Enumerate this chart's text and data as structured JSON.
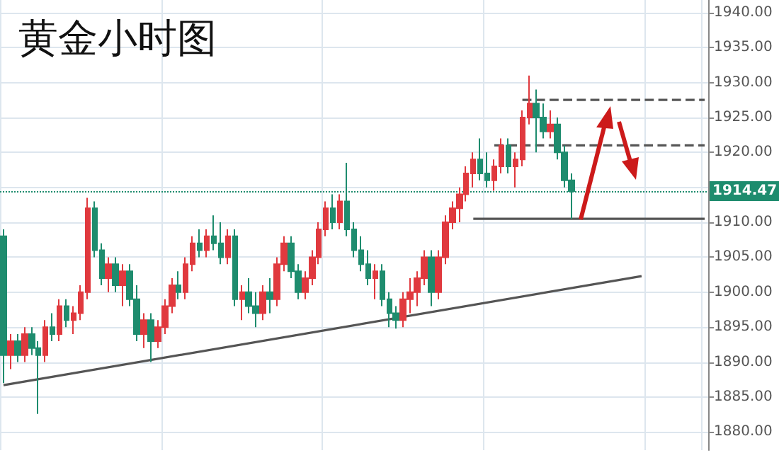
{
  "chart_data": {
    "type": "candlestick",
    "title": "黄金小时图",
    "categories": [
      null,
      null,
      null,
      null,
      null,
      null,
      null,
      null,
      null,
      null,
      null,
      null,
      null,
      null,
      null,
      null,
      null,
      null,
      null,
      null,
      null,
      null,
      null,
      null,
      null,
      null,
      null,
      null,
      null,
      null,
      null,
      null,
      null,
      null,
      null,
      null,
      null,
      null,
      null,
      null,
      null,
      null,
      null,
      null,
      null,
      null,
      null,
      null,
      null,
      null,
      null,
      null,
      null,
      null,
      null,
      null,
      null,
      null,
      null,
      null,
      null,
      null,
      null,
      null,
      null,
      null,
      null,
      null,
      null,
      null,
      null,
      null,
      null,
      null,
      null,
      null,
      null,
      null,
      null,
      null,
      null,
      null,
      null,
      null,
      null,
      null,
      null,
      null,
      null,
      null,
      null,
      null,
      null,
      null,
      null,
      null,
      null,
      null,
      null,
      null,
      null
    ],
    "ohlc": [
      [
        1908,
        1909,
        1887,
        1891
      ],
      [
        1891,
        1894,
        1889,
        1893
      ],
      [
        1893,
        1894,
        1890,
        1891
      ],
      [
        1891,
        1895,
        1890,
        1894
      ],
      [
        1894,
        1895,
        1891,
        1892
      ],
      [
        1892,
        1893,
        1882.6,
        1891
      ],
      [
        1891,
        1896,
        1890,
        1895
      ],
      [
        1895,
        1897,
        1893,
        1894
      ],
      [
        1894,
        1899,
        1893,
        1898
      ],
      [
        1898,
        1899,
        1895,
        1896
      ],
      [
        1896,
        1898,
        1894,
        1897
      ],
      [
        1897,
        1901,
        1896,
        1900
      ],
      [
        1900,
        1913.5,
        1899,
        1912
      ],
      [
        1912,
        1913,
        1905,
        1906
      ],
      [
        1906,
        1907,
        1901,
        1902
      ],
      [
        1902,
        1905,
        1900,
        1904
      ],
      [
        1904,
        1905,
        1900,
        1901
      ],
      [
        1901,
        1904,
        1898,
        1903
      ],
      [
        1903,
        1904,
        1898,
        1899
      ],
      [
        1899,
        1901,
        1893,
        1894
      ],
      [
        1894,
        1897,
        1892,
        1896
      ],
      [
        1896,
        1897,
        1890,
        1893
      ],
      [
        1893,
        1896,
        1892,
        1895
      ],
      [
        1895,
        1899,
        1894,
        1898
      ],
      [
        1898,
        1902,
        1897,
        1901
      ],
      [
        1901,
        1903,
        1899,
        1900
      ],
      [
        1900,
        1905,
        1899,
        1904
      ],
      [
        1904,
        1908,
        1903,
        1907
      ],
      [
        1907,
        1909,
        1905,
        1906
      ],
      [
        1906,
        1909,
        1905,
        1908
      ],
      [
        1908,
        1911,
        1906,
        1907
      ],
      [
        1907,
        1910,
        1904,
        1905
      ],
      [
        1905,
        1909,
        1904,
        1908
      ],
      [
        1908,
        1909,
        1898,
        1899
      ],
      [
        1899,
        1901,
        1896,
        1900
      ],
      [
        1900,
        1902,
        1897,
        1898
      ],
      [
        1898,
        1900,
        1895,
        1897
      ],
      [
        1897,
        1901,
        1896,
        1900
      ],
      [
        1900,
        1902,
        1897,
        1899
      ],
      [
        1899,
        1905,
        1898,
        1904
      ],
      [
        1904,
        1908,
        1903,
        1907
      ],
      [
        1907,
        1908,
        1902,
        1903
      ],
      [
        1903,
        1904,
        1899,
        1900
      ],
      [
        1900,
        1903,
        1899,
        1902
      ],
      [
        1902,
        1906,
        1901,
        1905
      ],
      [
        1905,
        1910,
        1904,
        1909
      ],
      [
        1909,
        1913,
        1908,
        1912
      ],
      [
        1912,
        1914,
        1909,
        1910
      ],
      [
        1910,
        1914,
        1909,
        1913
      ],
      [
        1913,
        1918.5,
        1908,
        1909
      ],
      [
        1909,
        1910,
        1905,
        1906
      ],
      [
        1906,
        1908,
        1903,
        1904
      ],
      [
        1904,
        1906,
        1901,
        1902
      ],
      [
        1902,
        1904,
        1899,
        1903
      ],
      [
        1903,
        1904,
        1898,
        1899
      ],
      [
        1899,
        1900,
        1895,
        1897
      ],
      [
        1897,
        1898,
        1894.8,
        1896
      ],
      [
        1896,
        1900,
        1895,
        1899
      ],
      [
        1899,
        1902,
        1897,
        1900
      ],
      [
        1900,
        1903,
        1898,
        1902
      ],
      [
        1902,
        1906,
        1901,
        1905
      ],
      [
        1905,
        1906,
        1898,
        1900
      ],
      [
        1900,
        1906,
        1899,
        1905
      ],
      [
        1905,
        1911,
        1904,
        1910
      ],
      [
        1910,
        1913,
        1909,
        1912
      ],
      [
        1912,
        1915,
        1910,
        1914
      ],
      [
        1914,
        1918,
        1913,
        1917
      ],
      [
        1917,
        1920,
        1915,
        1919
      ],
      [
        1919,
        1922,
        1916,
        1917
      ],
      [
        1917,
        1920,
        1915,
        1916
      ],
      [
        1916,
        1919,
        1914.5,
        1918
      ],
      [
        1918,
        1922,
        1917,
        1921
      ],
      [
        1921,
        1922,
        1917,
        1918
      ],
      [
        1918,
        1920,
        1915,
        1919
      ],
      [
        1919,
        1926,
        1918,
        1925
      ],
      [
        1925,
        1931,
        1924,
        1927
      ],
      [
        1927,
        1929,
        1920,
        1925
      ],
      [
        1925,
        1927,
        1922,
        1923
      ],
      [
        1923,
        1926,
        1922,
        1924
      ],
      [
        1924,
        1925,
        1919,
        1920
      ],
      [
        1920,
        1921,
        1915,
        1916
      ],
      [
        1916,
        1917,
        1910.5,
        1914.47
      ],
      null,
      null,
      null,
      null,
      null,
      null,
      null,
      null,
      null,
      null,
      null,
      null,
      null,
      null,
      null,
      null,
      null,
      null,
      null
    ],
    "colors": [
      "#1e8c6e",
      "#e0393e",
      "#1e8c6e",
      "#e0393e",
      "#1e8c6e",
      "#1e8c6e",
      "#e0393e",
      "#1e8c6e",
      "#e0393e",
      "#1e8c6e",
      "#e0393e",
      "#e0393e",
      "#e0393e",
      "#1e8c6e",
      "#1e8c6e",
      "#e0393e",
      "#1e8c6e",
      "#e0393e",
      "#1e8c6e",
      "#1e8c6e",
      "#e0393e",
      "#1e8c6e",
      "#e0393e",
      "#e0393e",
      "#e0393e",
      "#1e8c6e",
      "#e0393e",
      "#e0393e",
      "#1e8c6e",
      "#e0393e",
      "#1e8c6e",
      "#1e8c6e",
      "#e0393e",
      "#1e8c6e",
      "#e0393e",
      "#1e8c6e",
      "#1e8c6e",
      "#e0393e",
      "#1e8c6e",
      "#e0393e",
      "#e0393e",
      "#1e8c6e",
      "#1e8c6e",
      "#e0393e",
      "#e0393e",
      "#e0393e",
      "#e0393e",
      "#1e8c6e",
      "#e0393e",
      "#1e8c6e",
      "#1e8c6e",
      "#1e8c6e",
      "#1e8c6e",
      "#e0393e",
      "#1e8c6e",
      "#1e8c6e",
      "#1e8c6e",
      "#e0393e",
      "#e0393e",
      "#e0393e",
      "#e0393e",
      "#1e8c6e",
      "#e0393e",
      "#e0393e",
      "#e0393e",
      "#e0393e",
      "#e0393e",
      "#e0393e",
      "#1e8c6e",
      "#1e8c6e",
      "#e0393e",
      "#e0393e",
      "#1e8c6e",
      "#e0393e",
      "#e0393e",
      "#e0393e",
      "#1e8c6e",
      "#1e8c6e",
      "#e0393e",
      "#1e8c6e",
      "#1e8c6e",
      "#1e8c6e",
      null,
      null,
      null,
      null,
      null,
      null,
      null,
      null,
      null,
      null,
      null,
      null,
      null,
      null,
      null,
      null,
      null,
      null,
      null
    ],
    "ylim": [
      1877.4,
      1941.8
    ],
    "yticks": [
      {
        "value": 1880,
        "label": "1880.00"
      },
      {
        "value": 1885,
        "label": "1885.00"
      },
      {
        "value": 1890,
        "label": "1890.00"
      },
      {
        "value": 1895,
        "label": "1895.00"
      },
      {
        "value": 1900,
        "label": "1900.00"
      },
      {
        "value": 1905,
        "label": "1905.00"
      },
      {
        "value": 1910,
        "label": "1910.00"
      },
      {
        "value": 1915,
        "label": null
      },
      {
        "value": 1920,
        "label": "1920.00"
      },
      {
        "value": 1925,
        "label": "1925.00"
      },
      {
        "value": 1930,
        "label": "1930.00"
      },
      {
        "value": 1935,
        "label": "1935.00"
      },
      {
        "value": 1940,
        "label": "1940.00"
      }
    ],
    "grid": true,
    "tick_labels": "y",
    "ref_lines": [
      {
        "axis": "y",
        "value": 1914.47,
        "label": "1914.47",
        "color": "#1e8c6e",
        "line_style": "dotted"
      }
    ],
    "series": [
      {
        "type": "line",
        "color": "#555555",
        "line_style": "solid",
        "values": [
          1886.7,
          null,
          null,
          null,
          null,
          null,
          null,
          null,
          null,
          null,
          null,
          null,
          null,
          null,
          null,
          null,
          null,
          null,
          null,
          null,
          null,
          null,
          null,
          null,
          null,
          null,
          null,
          null,
          null,
          null,
          null,
          null,
          null,
          null,
          null,
          null,
          null,
          null,
          null,
          null,
          null,
          null,
          null,
          null,
          null,
          null,
          null,
          null,
          null,
          null,
          null,
          null,
          null,
          null,
          null,
          null,
          null,
          null,
          null,
          null,
          null,
          null,
          null,
          null,
          null,
          null,
          null,
          null,
          null,
          null,
          null,
          null,
          null,
          null,
          null,
          null,
          null,
          null,
          null,
          null,
          null,
          null,
          null,
          null,
          null,
          null,
          null,
          null,
          null,
          null,
          null,
          1902.3,
          null,
          null,
          null,
          null,
          null,
          null,
          null,
          null,
          null
        ]
      },
      {
        "type": "line",
        "color": "#555555",
        "line_style": "solid",
        "values": [
          null,
          null,
          null,
          null,
          null,
          null,
          null,
          null,
          null,
          null,
          null,
          null,
          null,
          null,
          null,
          null,
          null,
          null,
          null,
          null,
          null,
          null,
          null,
          null,
          null,
          null,
          null,
          null,
          null,
          null,
          null,
          null,
          null,
          null,
          null,
          null,
          null,
          null,
          null,
          null,
          null,
          null,
          null,
          null,
          null,
          null,
          null,
          null,
          null,
          null,
          null,
          null,
          null,
          null,
          null,
          null,
          null,
          null,
          null,
          null,
          null,
          null,
          null,
          null,
          null,
          null,
          null,
          1910.5,
          null,
          null,
          null,
          null,
          null,
          null,
          null,
          null,
          null,
          null,
          null,
          null,
          null,
          null,
          null,
          null,
          null,
          null,
          null,
          null,
          null,
          null,
          null,
          null,
          null,
          null,
          null,
          null,
          null,
          null,
          null,
          null,
          1910.5
        ]
      },
      {
        "type": "line",
        "color": "#555555",
        "line_style": "dashed",
        "values": [
          null,
          null,
          null,
          null,
          null,
          null,
          null,
          null,
          null,
          null,
          null,
          null,
          null,
          null,
          null,
          null,
          null,
          null,
          null,
          null,
          null,
          null,
          null,
          null,
          null,
          null,
          null,
          null,
          null,
          null,
          null,
          null,
          null,
          null,
          null,
          null,
          null,
          null,
          null,
          null,
          null,
          null,
          null,
          null,
          null,
          null,
          null,
          null,
          null,
          null,
          null,
          null,
          null,
          null,
          null,
          null,
          null,
          null,
          null,
          null,
          null,
          null,
          null,
          null,
          null,
          null,
          null,
          null,
          null,
          null,
          null,
          null,
          null,
          null,
          1927.5,
          null,
          null,
          null,
          null,
          null,
          null,
          null,
          null,
          null,
          null,
          null,
          null,
          null,
          null,
          null,
          null,
          null,
          null,
          null,
          null,
          null,
          null,
          null,
          null,
          null,
          1927.5
        ]
      },
      {
        "type": "line",
        "color": "#555555",
        "line_style": "dashed",
        "values": [
          null,
          null,
          null,
          null,
          null,
          null,
          null,
          null,
          null,
          null,
          null,
          null,
          null,
          null,
          null,
          null,
          null,
          null,
          null,
          null,
          null,
          null,
          null,
          null,
          null,
          null,
          null,
          null,
          null,
          null,
          null,
          null,
          null,
          null,
          null,
          null,
          null,
          null,
          null,
          null,
          null,
          null,
          null,
          null,
          null,
          null,
          null,
          null,
          null,
          null,
          null,
          null,
          null,
          null,
          null,
          null,
          null,
          null,
          null,
          null,
          null,
          null,
          null,
          null,
          null,
          null,
          null,
          null,
          null,
          null,
          1921,
          null,
          null,
          null,
          null,
          null,
          null,
          null,
          null,
          null,
          null,
          null,
          null,
          null,
          null,
          null,
          null,
          null,
          null,
          null,
          null,
          null,
          null,
          null,
          null,
          null,
          null,
          null,
          null,
          null,
          1921
        ]
      }
    ]
  }
}
